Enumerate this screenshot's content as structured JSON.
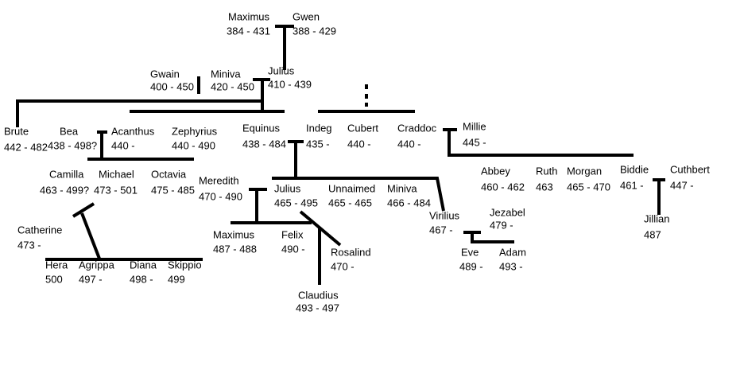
{
  "nodes": [
    {
      "name": "Maximus",
      "dates": "384 - 431"
    },
    {
      "name": "Gwen",
      "dates": "388 - 429"
    },
    {
      "name": "Gwain",
      "dates": "400 - 450"
    },
    {
      "name": "Miniva",
      "dates": "420 - 450"
    },
    {
      "name": "Julius",
      "dates": "410 - 439"
    },
    {
      "name": "Brute",
      "dates": "442 - 482"
    },
    {
      "name": "Bea",
      "dates": "438 - 498?"
    },
    {
      "name": "Acanthus",
      "dates": "440 -"
    },
    {
      "name": "Zephyrius",
      "dates": "440 - 490"
    },
    {
      "name": "Equinus",
      "dates": "438 - 484"
    },
    {
      "name": "Indeg",
      "dates": "435 -"
    },
    {
      "name": "Cubert",
      "dates": "440 -"
    },
    {
      "name": "Craddoc",
      "dates": "440 -"
    },
    {
      "name": "Millie",
      "dates": "445 -"
    },
    {
      "name": "Camilla",
      "dates": "463 - 499?"
    },
    {
      "name": "Michael",
      "dates": "473 - 501"
    },
    {
      "name": "Octavia",
      "dates": "475 - 485"
    },
    {
      "name": "Meredith",
      "dates": "470 - 490"
    },
    {
      "name": "Julius",
      "dates": "465 - 495"
    },
    {
      "name": "Unnaimed",
      "dates": "465 - 465"
    },
    {
      "name": "Miniva",
      "dates": "466 - 484"
    },
    {
      "name": "Abbey",
      "dates": "460 - 462"
    },
    {
      "name": "Ruth",
      "dates": "463"
    },
    {
      "name": "Morgan",
      "dates": "465 - 470"
    },
    {
      "name": "Biddie",
      "dates": "461 -"
    },
    {
      "name": "Cuthbert",
      "dates": "447 -"
    },
    {
      "name": "Jillian",
      "dates": "487"
    },
    {
      "name": "Virilius",
      "dates": "467 -"
    },
    {
      "name": "Jezabel",
      "dates": "479 -"
    },
    {
      "name": "Eve",
      "dates": "489 -"
    },
    {
      "name": "Adam",
      "dates": "493 -"
    },
    {
      "name": "Catherine",
      "dates": "473 -"
    },
    {
      "name": "Maximus",
      "dates": "487 - 488"
    },
    {
      "name": "Felix",
      "dates": "490 -"
    },
    {
      "name": "Rosalind",
      "dates": "470 -"
    },
    {
      "name": "Claudius",
      "dates": "493 - 497"
    },
    {
      "name": "Hera",
      "dates": "500"
    },
    {
      "name": "Agrippa",
      "dates": "497 -"
    },
    {
      "name": "Diana",
      "dates": "498 -"
    },
    {
      "name": "Skippio",
      "dates": "499"
    }
  ]
}
